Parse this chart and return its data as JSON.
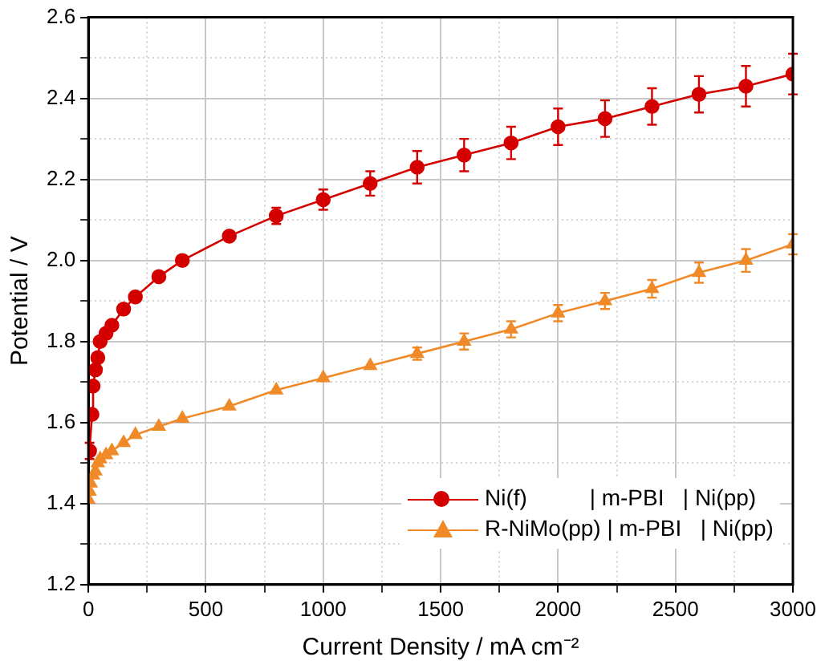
{
  "chart_data": {
    "type": "line",
    "xlabel": "Current Density / mA cm⁻²",
    "ylabel": "Potential / V",
    "xlim": [
      0,
      3000
    ],
    "ylim": [
      1.2,
      2.6
    ],
    "xticks": [
      0,
      {
        "value": 250,
        "label": null
      },
      500,
      {
        "value": 750,
        "label": null
      },
      1000,
      {
        "value": 1250,
        "label": null
      },
      1500,
      {
        "value": 1750,
        "label": null
      },
      2000,
      {
        "value": 2250,
        "label": null
      },
      2500,
      {
        "value": 2750,
        "label": null
      },
      3000
    ],
    "yticks": [
      1.2,
      {
        "value": 1.3,
        "label": null
      },
      1.4,
      {
        "value": 1.5,
        "label": null
      },
      1.6,
      {
        "value": 1.7,
        "label": null
      },
      1.8,
      {
        "value": 1.9,
        "label": null
      },
      {
        "value": 2,
        "label": "2.0"
      },
      {
        "value": 2.1,
        "label": null
      },
      2.2,
      {
        "value": 2.3,
        "label": null
      },
      2.4,
      {
        "value": 2.5,
        "label": null
      },
      2.6
    ],
    "grid": true,
    "legend": "bottom right",
    "line_style": "solid",
    "series": [
      {
        "name": "Ni(f)          | m-PBI   | Ni(pp)",
        "color": "#d40000",
        "marker": "circle",
        "x": [
          5,
          15,
          20,
          30,
          40,
          50,
          75,
          100,
          150,
          200,
          300,
          400,
          600,
          800,
          1000,
          1200,
          1400,
          1600,
          1800,
          2000,
          2200,
          2400,
          2600,
          2800,
          3000
        ],
        "values": [
          1.53,
          1.62,
          1.69,
          1.73,
          1.76,
          1.8,
          1.82,
          1.84,
          1.88,
          1.91,
          1.96,
          2.0,
          2.06,
          2.11,
          2.15,
          2.19,
          2.23,
          2.26,
          2.29,
          2.33,
          2.35,
          2.38,
          2.41,
          2.43,
          2.46
        ],
        "errors": [
          0.02,
          null,
          null,
          null,
          null,
          null,
          null,
          null,
          null,
          null,
          null,
          null,
          null,
          0.02,
          0.025,
          0.03,
          0.04,
          0.04,
          0.04,
          0.045,
          0.045,
          0.045,
          0.045,
          0.05,
          0.05
        ]
      },
      {
        "name": "R-NiMo(pp) | m-PBI   | Ni(pp)",
        "color": "#f08a28",
        "marker": "triangle",
        "x": [
          0,
          5,
          10,
          20,
          30,
          40,
          50,
          75,
          100,
          150,
          200,
          300,
          400,
          600,
          800,
          1000,
          1200,
          1400,
          1600,
          1800,
          2000,
          2200,
          2400,
          2600,
          2800,
          3000
        ],
        "values": [
          1.41,
          1.43,
          1.45,
          1.47,
          1.48,
          1.5,
          1.51,
          1.52,
          1.53,
          1.55,
          1.57,
          1.59,
          1.61,
          1.64,
          1.68,
          1.71,
          1.74,
          1.77,
          1.8,
          1.83,
          1.87,
          1.9,
          1.93,
          1.97,
          2.0,
          2.04
        ],
        "errors": [
          null,
          null,
          null,
          null,
          null,
          null,
          null,
          null,
          null,
          null,
          null,
          null,
          null,
          null,
          null,
          null,
          null,
          0.015,
          0.02,
          0.02,
          0.02,
          0.02,
          0.022,
          0.025,
          0.028,
          0.025
        ]
      }
    ]
  }
}
